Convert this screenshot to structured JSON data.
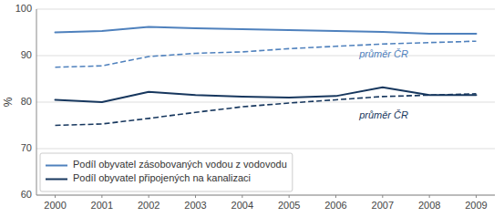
{
  "chart_data": {
    "type": "line",
    "x": [
      2000,
      2001,
      2002,
      2003,
      2004,
      2005,
      2006,
      2007,
      2008,
      2009
    ],
    "xlim": [
      1999.6,
      2009.4
    ],
    "xticks": [
      2000,
      2001,
      2002,
      2003,
      2004,
      2005,
      2006,
      2007,
      2008,
      2009
    ],
    "ylabel": "%",
    "ylim": [
      60,
      100
    ],
    "yticks": [
      60,
      70,
      80,
      90,
      100
    ],
    "grid": true,
    "legend": "lower left",
    "series": [
      {
        "name": "Podíl obyvatel zásobovaných vodou z vodovodu",
        "color": "#4F81BD",
        "line_style": "solid",
        "values": [
          95.0,
          95.3,
          96.2,
          95.9,
          95.7,
          95.5,
          95.3,
          95.1,
          94.7,
          94.7
        ]
      },
      {
        "name": "Podíl obyvatel připojených na kanalizaci",
        "color": "#17375E",
        "line_style": "solid",
        "values": [
          80.5,
          80.0,
          82.2,
          81.5,
          81.2,
          81.0,
          81.3,
          83.2,
          81.5,
          81.5
        ]
      },
      {
        "color": "#4F81BD",
        "line_style": "dashed",
        "values": [
          87.5,
          87.8,
          89.8,
          90.5,
          90.8,
          91.5,
          92.0,
          92.5,
          92.8,
          93.1
        ]
      },
      {
        "color": "#17375E",
        "line_style": "dashed",
        "values": [
          75.0,
          75.3,
          76.5,
          77.8,
          79.0,
          79.8,
          80.5,
          81.2,
          81.5,
          81.8
        ]
      }
    ],
    "annotations": [
      {
        "text": "průměr ČR",
        "x": 2006.5,
        "y": 90.2,
        "color": "#4F81BD"
      },
      {
        "text": "průměr ČR",
        "x": 2006.5,
        "y": 77.0,
        "color": "#17375E"
      }
    ]
  }
}
